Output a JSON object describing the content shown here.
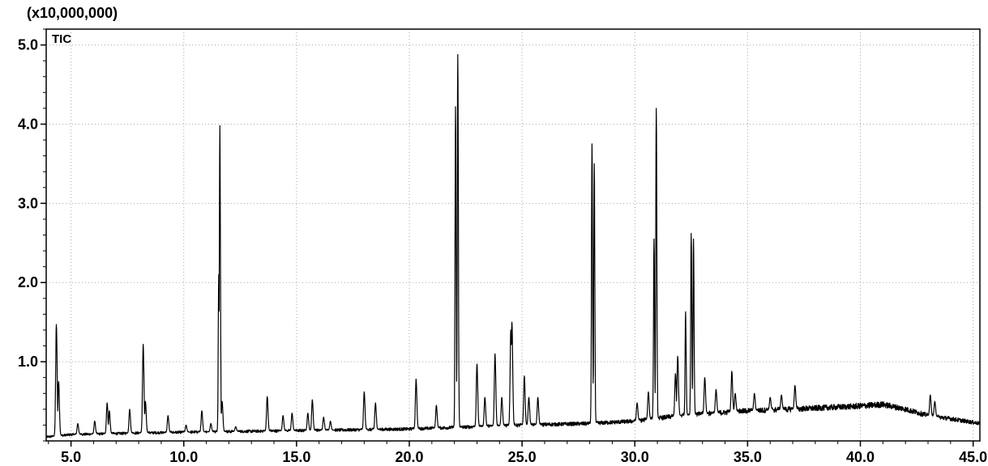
{
  "chart_data": {
    "type": "line",
    "multiplier_label": "(x10,000,000)",
    "series_label": "TIC",
    "xlabel": "",
    "ylabel": "",
    "xlim": [
      3.9,
      45.3
    ],
    "ylim": [
      0,
      5.2
    ],
    "grid": true,
    "x_ticks": [
      "5.0",
      "10.0",
      "15.0",
      "20.0",
      "25.0",
      "30.0",
      "35.0",
      "40.0",
      "45.0"
    ],
    "y_ticks": [
      "1.0",
      "2.0",
      "3.0",
      "4.0",
      "5.0"
    ],
    "baseline": [
      [
        3.9,
        0.05
      ],
      [
        5.0,
        0.08
      ],
      [
        8.0,
        0.1
      ],
      [
        10.0,
        0.11
      ],
      [
        15.0,
        0.13
      ],
      [
        20.0,
        0.15
      ],
      [
        25.0,
        0.2
      ],
      [
        28.0,
        0.22
      ],
      [
        30.0,
        0.25
      ],
      [
        32.0,
        0.32
      ],
      [
        35.0,
        0.38
      ],
      [
        37.0,
        0.4
      ],
      [
        40.0,
        0.44
      ],
      [
        41.0,
        0.46
      ],
      [
        42.0,
        0.4
      ],
      [
        43.0,
        0.32
      ],
      [
        44.0,
        0.28
      ],
      [
        45.3,
        0.22
      ]
    ],
    "peaks": [
      {
        "rt": 4.35,
        "height": 1.47
      },
      {
        "rt": 4.45,
        "height": 0.75
      },
      {
        "rt": 5.3,
        "height": 0.22
      },
      {
        "rt": 6.05,
        "height": 0.25
      },
      {
        "rt": 6.6,
        "height": 0.48
      },
      {
        "rt": 6.7,
        "height": 0.38
      },
      {
        "rt": 7.6,
        "height": 0.4
      },
      {
        "rt": 8.2,
        "height": 1.22
      },
      {
        "rt": 8.3,
        "height": 0.5
      },
      {
        "rt": 9.3,
        "height": 0.32
      },
      {
        "rt": 10.1,
        "height": 0.2
      },
      {
        "rt": 10.8,
        "height": 0.38
      },
      {
        "rt": 11.2,
        "height": 0.22
      },
      {
        "rt": 11.6,
        "height": 3.98
      },
      {
        "rt": 11.55,
        "height": 2.1
      },
      {
        "rt": 11.7,
        "height": 0.5
      },
      {
        "rt": 12.3,
        "height": 0.18
      },
      {
        "rt": 13.7,
        "height": 0.56
      },
      {
        "rt": 14.4,
        "height": 0.32
      },
      {
        "rt": 14.8,
        "height": 0.35
      },
      {
        "rt": 15.5,
        "height": 0.35
      },
      {
        "rt": 15.7,
        "height": 0.52
      },
      {
        "rt": 16.2,
        "height": 0.3
      },
      {
        "rt": 16.5,
        "height": 0.25
      },
      {
        "rt": 18.0,
        "height": 0.62
      },
      {
        "rt": 18.5,
        "height": 0.48
      },
      {
        "rt": 20.3,
        "height": 0.78
      },
      {
        "rt": 21.2,
        "height": 0.45
      },
      {
        "rt": 22.05,
        "height": 4.22
      },
      {
        "rt": 22.15,
        "height": 4.88
      },
      {
        "rt": 23.0,
        "height": 0.97
      },
      {
        "rt": 23.35,
        "height": 0.55
      },
      {
        "rt": 23.8,
        "height": 1.1
      },
      {
        "rt": 24.1,
        "height": 0.55
      },
      {
        "rt": 24.5,
        "height": 1.4
      },
      {
        "rt": 24.55,
        "height": 1.5
      },
      {
        "rt": 25.1,
        "height": 0.82
      },
      {
        "rt": 25.3,
        "height": 0.55
      },
      {
        "rt": 25.7,
        "height": 0.55
      },
      {
        "rt": 28.1,
        "height": 3.75
      },
      {
        "rt": 28.2,
        "height": 3.5
      },
      {
        "rt": 30.1,
        "height": 0.48
      },
      {
        "rt": 30.6,
        "height": 0.62
      },
      {
        "rt": 30.85,
        "height": 2.55
      },
      {
        "rt": 30.95,
        "height": 4.2
      },
      {
        "rt": 31.8,
        "height": 0.85
      },
      {
        "rt": 31.9,
        "height": 1.07
      },
      {
        "rt": 32.25,
        "height": 1.63
      },
      {
        "rt": 32.5,
        "height": 2.62
      },
      {
        "rt": 32.6,
        "height": 2.55
      },
      {
        "rt": 33.1,
        "height": 0.8
      },
      {
        "rt": 33.6,
        "height": 0.65
      },
      {
        "rt": 34.3,
        "height": 0.88
      },
      {
        "rt": 34.45,
        "height": 0.6
      },
      {
        "rt": 35.3,
        "height": 0.6
      },
      {
        "rt": 36.0,
        "height": 0.55
      },
      {
        "rt": 36.5,
        "height": 0.58
      },
      {
        "rt": 37.1,
        "height": 0.7
      },
      {
        "rt": 43.1,
        "height": 0.58
      },
      {
        "rt": 43.3,
        "height": 0.5
      }
    ]
  }
}
